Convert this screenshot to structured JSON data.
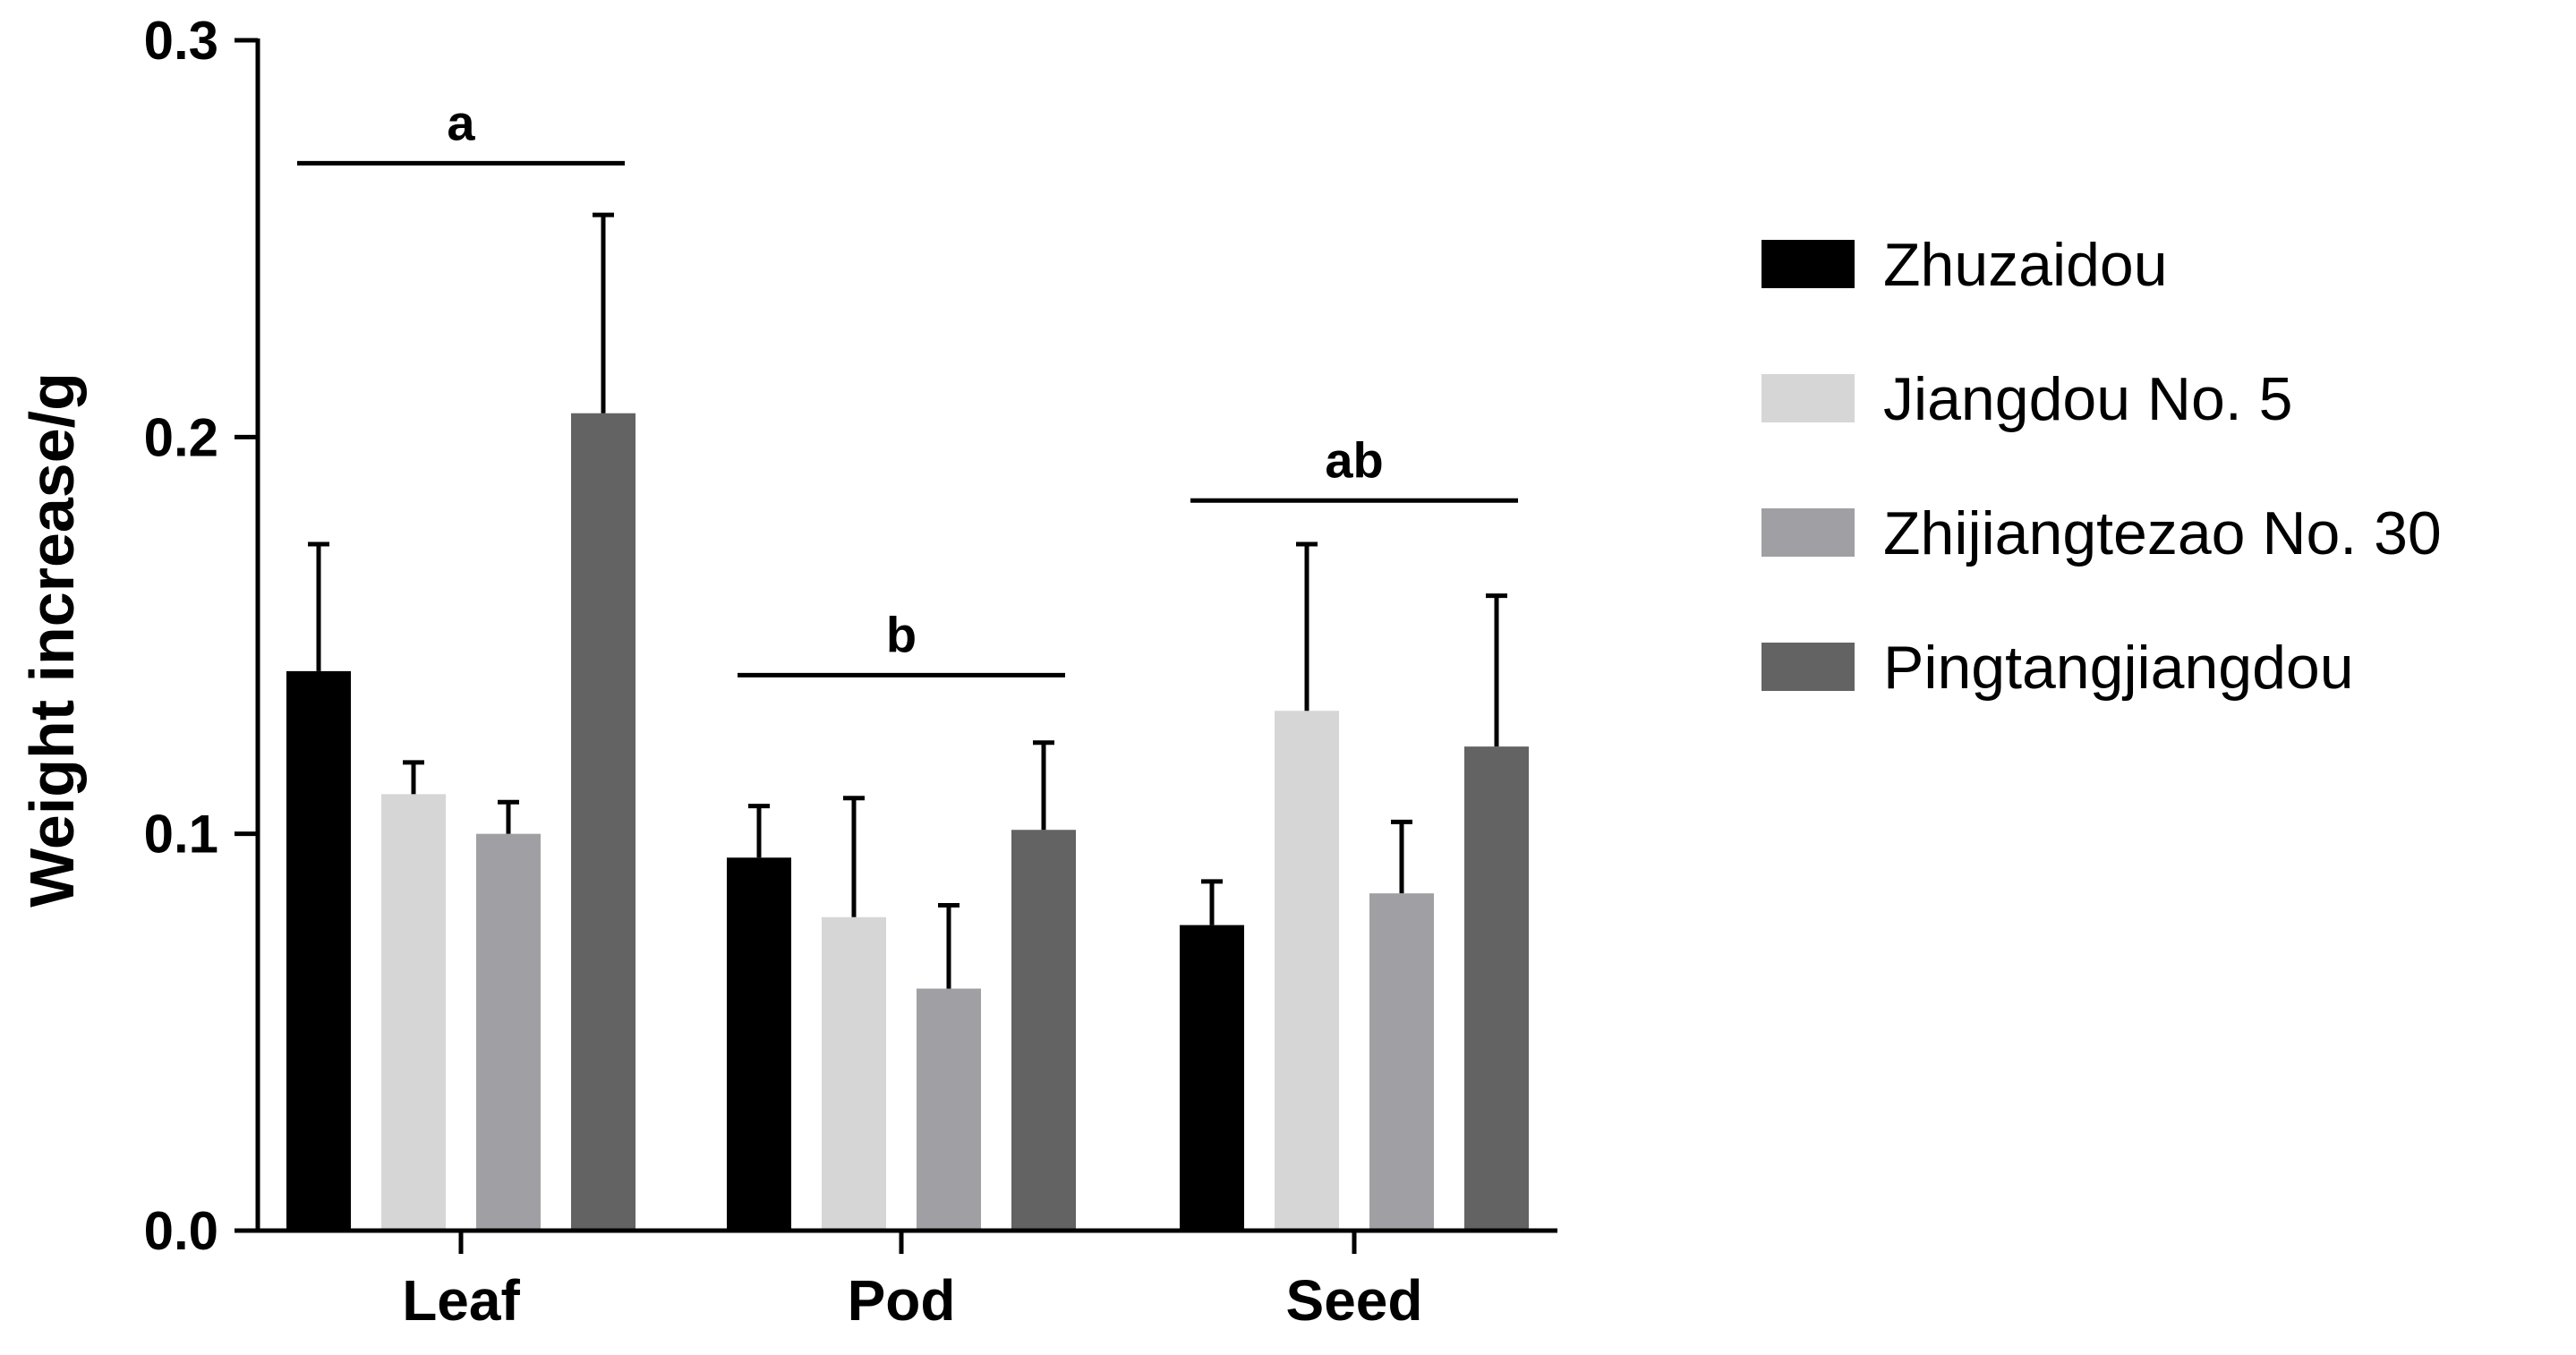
{
  "chart_data": {
    "type": "bar",
    "ylabel": "Weight increase/g",
    "xlabel": "",
    "ylim": [
      0,
      0.3
    ],
    "yticks": [
      0.0,
      0.1,
      0.2,
      0.3
    ],
    "ytick_labels": [
      "0.0",
      "0.1",
      "0.2",
      "0.3"
    ],
    "categories": [
      "Leaf",
      "Pod",
      "Seed"
    ],
    "legend_position": "right",
    "series": [
      {
        "name": "Zhuzaidou",
        "color": "#000000",
        "values": [
          0.141,
          0.094,
          0.077
        ],
        "errors": [
          0.032,
          0.013,
          0.011
        ]
      },
      {
        "name": "Jiangdou No. 5",
        "color": "#d6d6d6",
        "values": [
          0.11,
          0.079,
          0.131
        ],
        "errors": [
          0.008,
          0.03,
          0.042
        ]
      },
      {
        "name": "Zhijiangtezao No. 30",
        "color": "#a0a0a4",
        "values": [
          0.1,
          0.061,
          0.085
        ],
        "errors": [
          0.008,
          0.021,
          0.018
        ]
      },
      {
        "name": "Pingtangjiangdou",
        "color": "#636363",
        "values": [
          0.206,
          0.101,
          0.122
        ],
        "errors": [
          0.05,
          0.022,
          0.038
        ]
      }
    ],
    "annotations": [
      {
        "category": "Leaf",
        "text": "a",
        "y": 0.269
      },
      {
        "category": "Pod",
        "text": "b",
        "y": 0.14
      },
      {
        "category": "Seed",
        "text": "ab",
        "y": 0.184
      }
    ]
  }
}
